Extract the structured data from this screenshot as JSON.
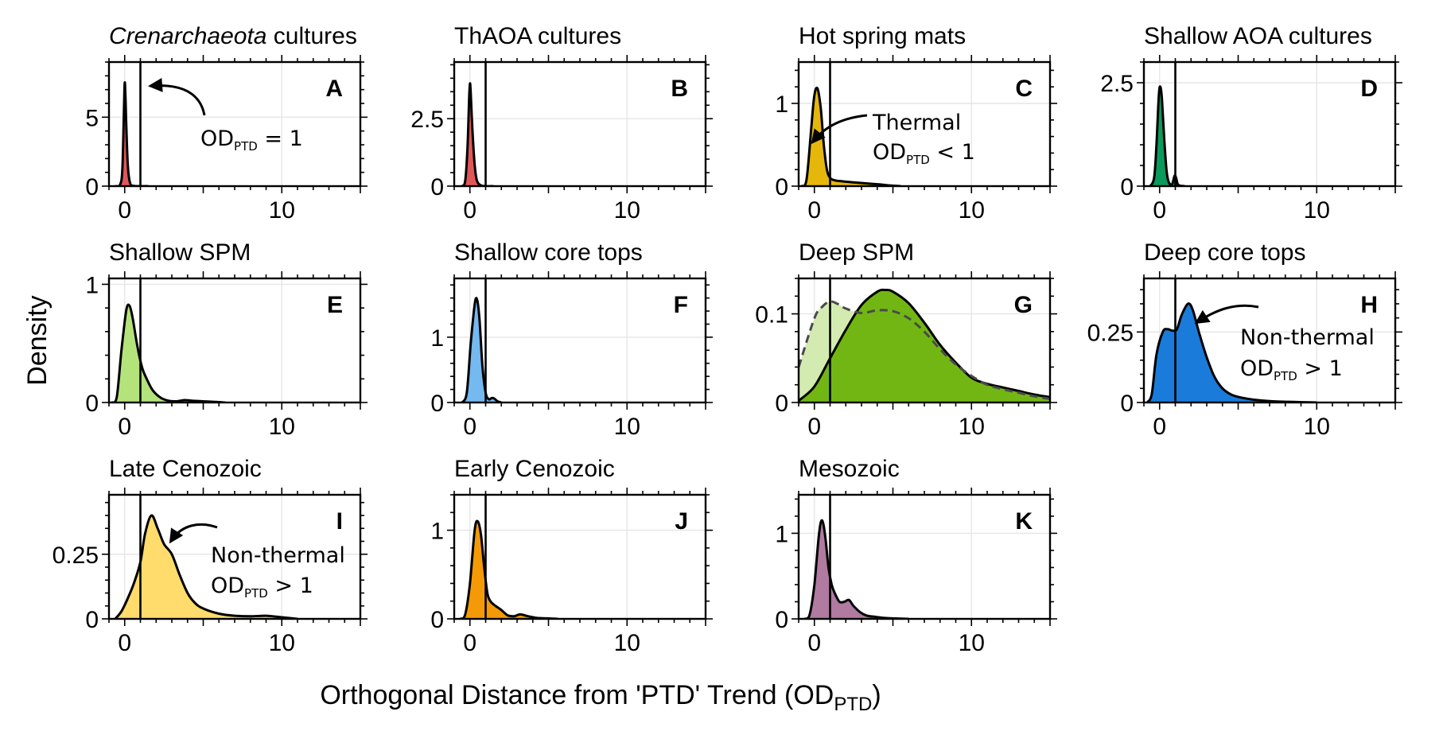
{
  "figure": {
    "xlabel": "Orthogonal Distance from 'PTD' Trend (OD",
    "xlabel_sub": "PTD",
    "xlabel_end": ")",
    "ylabel": "Density"
  },
  "chart_data": [
    {
      "type": "area",
      "letter": "A",
      "title_italic": "Crenarchaeota",
      "title": " cultures",
      "color": "#e15759",
      "xlim": [
        -1,
        15
      ],
      "ylim": [
        0,
        9
      ],
      "yticks": [
        0,
        5
      ],
      "yticks_labels": [
        "0",
        "5"
      ],
      "xticks": [
        0,
        10
      ],
      "vline": 1,
      "series": [
        {
          "x": [
            -0.6,
            -0.3,
            -0.15,
            -0.05,
            0.0,
            0.05,
            0.1,
            0.2,
            0.35,
            0.6,
            1.0,
            1.5
          ],
          "y": [
            0,
            0.1,
            1.2,
            5.5,
            7.5,
            6.5,
            4.5,
            1.5,
            0.2,
            0.02,
            0,
            0
          ]
        }
      ],
      "annotation": {
        "lines": [
          "OD_PTD = 1"
        ],
        "arrow": "A"
      }
    },
    {
      "type": "area",
      "letter": "B",
      "title": "ThAOA cultures",
      "color": "#e15759",
      "xlim": [
        -1,
        15
      ],
      "ylim": [
        0,
        4.6
      ],
      "yticks": [
        0,
        2.5
      ],
      "yticks_labels": [
        "0",
        "2.5"
      ],
      "xticks": [
        0,
        10
      ],
      "vline": 1,
      "series": [
        {
          "x": [
            -0.5,
            -0.3,
            -0.15,
            -0.05,
            0.0,
            0.05,
            0.15,
            0.3,
            0.45,
            0.7,
            1.0,
            1.5
          ],
          "y": [
            0,
            0.2,
            1.5,
            3.3,
            3.8,
            3.5,
            2.2,
            0.8,
            0.2,
            0.03,
            0,
            0
          ]
        }
      ]
    },
    {
      "type": "area",
      "letter": "C",
      "title": "Hot spring mats",
      "color": "#e5b70b",
      "xlim": [
        -1,
        15
      ],
      "ylim": [
        0,
        1.5
      ],
      "yticks": [
        0,
        1
      ],
      "yticks_labels": [
        "0",
        "1"
      ],
      "xticks": [
        0,
        10
      ],
      "vline": 1,
      "series": [
        {
          "x": [
            -0.8,
            -0.5,
            -0.2,
            0.0,
            0.2,
            0.4,
            0.6,
            0.8,
            1.0,
            1.3,
            1.7,
            2.2,
            2.8,
            3.5,
            4.2,
            4.7,
            5.5
          ],
          "y": [
            0,
            0.08,
            0.7,
            1.1,
            1.18,
            0.95,
            0.5,
            0.2,
            0.1,
            0.07,
            0.06,
            0.05,
            0.04,
            0.03,
            0.02,
            0.01,
            0
          ]
        }
      ],
      "annotation": {
        "lines": [
          "Thermal",
          "OD_PTD < 1"
        ],
        "arrow": "C"
      }
    },
    {
      "type": "area",
      "letter": "D",
      "title": "Shallow AOA cultures",
      "color": "#0a9a5c",
      "xlim": [
        -1,
        15
      ],
      "ylim": [
        0,
        3
      ],
      "yticks": [
        0,
        2.5
      ],
      "yticks_labels": [
        "0",
        "2.5"
      ],
      "xticks": [
        0,
        10
      ],
      "vline": 1,
      "series": [
        {
          "x": [
            -0.6,
            -0.35,
            -0.2,
            -0.05,
            0.05,
            0.15,
            0.3,
            0.45,
            0.6,
            0.8,
            0.95,
            1.05,
            1.15,
            1.3,
            1.6
          ],
          "y": [
            0,
            0.2,
            1.0,
            2.2,
            2.4,
            2.1,
            1.1,
            0.35,
            0.08,
            0.05,
            0.25,
            0.2,
            0.05,
            0.01,
            0
          ]
        }
      ]
    },
    {
      "type": "area",
      "letter": "E",
      "title": "Shallow SPM",
      "color": "#b5e37b",
      "xlim": [
        -1,
        15
      ],
      "ylim": [
        0,
        1.05
      ],
      "yticks": [
        0,
        1
      ],
      "yticks_labels": [
        "0",
        "1"
      ],
      "xticks": [
        0,
        10
      ],
      "vline": 1,
      "series": [
        {
          "x": [
            -0.8,
            -0.5,
            -0.2,
            0.1,
            0.3,
            0.5,
            0.8,
            1.1,
            1.4,
            1.8,
            2.3,
            2.8,
            3.3,
            3.8,
            4.3,
            5.0,
            5.8,
            6.4
          ],
          "y": [
            0,
            0.05,
            0.45,
            0.78,
            0.82,
            0.72,
            0.48,
            0.3,
            0.2,
            0.1,
            0.04,
            0.015,
            0.01,
            0.02,
            0.015,
            0.01,
            0.005,
            0
          ]
        }
      ]
    },
    {
      "type": "area",
      "letter": "F",
      "title": "Shallow core tops",
      "color": "#74b9f0",
      "xlim": [
        -1,
        15
      ],
      "ylim": [
        0,
        1.9
      ],
      "yticks": [
        0,
        1
      ],
      "yticks_labels": [
        "0",
        "1"
      ],
      "xticks": [
        0,
        10
      ],
      "vline": 1,
      "series": [
        {
          "x": [
            -0.5,
            -0.2,
            0.05,
            0.3,
            0.45,
            0.6,
            0.8,
            1.0,
            1.2,
            1.4,
            1.55,
            1.75,
            2.0
          ],
          "y": [
            0,
            0.15,
            0.9,
            1.5,
            1.58,
            1.3,
            0.55,
            0.15,
            0.05,
            0.07,
            0.06,
            0.02,
            0
          ]
        }
      ]
    },
    {
      "type": "area",
      "letter": "G",
      "title": "Deep SPM",
      "color": "#72b614",
      "color2": "#d3ebb0",
      "xlim": [
        -1,
        15
      ],
      "ylim": [
        0,
        0.14
      ],
      "yticks": [
        0,
        0.1
      ],
      "yticks_labels": [
        "0",
        "0.1"
      ],
      "xticks": [
        0,
        10
      ],
      "vline": 1,
      "series": [
        {
          "x": [
            -1,
            0,
            1,
            2,
            3,
            4,
            4.5,
            5,
            6,
            7,
            8,
            9,
            10,
            11,
            12,
            13,
            14,
            15
          ],
          "y": [
            0.002,
            0.018,
            0.05,
            0.082,
            0.11,
            0.125,
            0.127,
            0.125,
            0.112,
            0.09,
            0.065,
            0.045,
            0.028,
            0.021,
            0.017,
            0.013,
            0.009,
            0.006
          ]
        },
        {
          "x": [
            -1,
            0,
            0.5,
            1,
            1.5,
            2,
            3,
            4,
            5,
            6,
            7,
            8,
            9,
            10,
            11,
            12,
            13,
            14,
            15
          ],
          "y": [
            0.04,
            0.095,
            0.108,
            0.114,
            0.111,
            0.106,
            0.101,
            0.104,
            0.103,
            0.095,
            0.08,
            0.06,
            0.043,
            0.03,
            0.02,
            0.015,
            0.011,
            0.007,
            0.004
          ],
          "dashed": true
        }
      ]
    },
    {
      "type": "area",
      "letter": "H",
      "title": "Deep core tops",
      "color": "#1a7bdb",
      "xlim": [
        -1,
        15
      ],
      "ylim": [
        0,
        0.44
      ],
      "yticks": [
        0,
        0.25
      ],
      "yticks_labels": [
        "0",
        "0.25"
      ],
      "xticks": [
        0,
        10
      ],
      "vline": 1,
      "series": [
        {
          "x": [
            -0.8,
            -0.5,
            -0.2,
            0.2,
            0.5,
            0.8,
            1.1,
            1.4,
            1.8,
            2.1,
            2.5,
            3.0,
            3.5,
            4.0,
            4.5,
            5.0,
            6.0,
            7.0,
            8.5,
            10.0
          ],
          "y": [
            0,
            0.03,
            0.17,
            0.25,
            0.26,
            0.255,
            0.26,
            0.31,
            0.35,
            0.33,
            0.25,
            0.16,
            0.09,
            0.05,
            0.03,
            0.02,
            0.01,
            0.005,
            0.002,
            0
          ]
        }
      ],
      "annotation": {
        "lines": [
          "Non-thermal",
          "OD_PTD > 1"
        ],
        "arrow": "H"
      }
    },
    {
      "type": "area",
      "letter": "I",
      "title": "Late Cenozoic",
      "color": "#ffdc6b",
      "xlim": [
        -1,
        15
      ],
      "ylim": [
        0,
        0.48
      ],
      "yticks": [
        0,
        0.25
      ],
      "yticks_labels": [
        "0",
        "0.25"
      ],
      "xticks": [
        0,
        10
      ],
      "vline": 1,
      "series": [
        {
          "x": [
            -0.6,
            -0.2,
            0.2,
            0.6,
            1.0,
            1.3,
            1.7,
            2.1,
            2.5,
            3.0,
            3.5,
            4.0,
            4.5,
            5.0,
            6.0,
            7.0,
            8.0,
            9.0,
            10.0,
            11.0
          ],
          "y": [
            0,
            0.03,
            0.08,
            0.14,
            0.22,
            0.33,
            0.4,
            0.35,
            0.29,
            0.25,
            0.17,
            0.1,
            0.06,
            0.04,
            0.02,
            0.012,
            0.01,
            0.012,
            0.006,
            0
          ]
        }
      ],
      "annotation": {
        "lines": [
          "Non-thermal",
          "OD_PTD > 1"
        ],
        "arrow": "I"
      }
    },
    {
      "type": "area",
      "letter": "J",
      "title": "Early Cenozoic",
      "color": "#f59a07",
      "xlim": [
        -1,
        15
      ],
      "ylim": [
        0,
        1.4
      ],
      "yticks": [
        0,
        1
      ],
      "yticks_labels": [
        "0",
        "1"
      ],
      "xticks": [
        0,
        10
      ],
      "vline": 1,
      "series": [
        {
          "x": [
            -0.6,
            -0.3,
            0.0,
            0.3,
            0.5,
            0.7,
            0.9,
            1.1,
            1.3,
            1.6,
            2.0,
            2.4,
            2.8,
            3.2,
            3.7,
            4.3,
            5.0,
            5.6
          ],
          "y": [
            0,
            0.05,
            0.4,
            1.0,
            1.1,
            0.95,
            0.6,
            0.3,
            0.2,
            0.15,
            0.1,
            0.04,
            0.03,
            0.05,
            0.03,
            0.01,
            0.005,
            0
          ]
        }
      ]
    },
    {
      "type": "area",
      "letter": "K",
      "title": "Mesozoic",
      "color": "#b07aa1",
      "xlim": [
        -1,
        15
      ],
      "ylim": [
        0,
        1.45
      ],
      "yticks": [
        0,
        1
      ],
      "yticks_labels": [
        "0",
        "1"
      ],
      "xticks": [
        0,
        10
      ],
      "vline": 1,
      "series": [
        {
          "x": [
            -0.6,
            -0.3,
            0.0,
            0.3,
            0.5,
            0.7,
            0.9,
            1.1,
            1.3,
            1.6,
            1.9,
            2.2,
            2.5,
            2.9,
            3.3,
            3.8,
            4.5,
            5.2,
            6.0
          ],
          "y": [
            0,
            0.05,
            0.4,
            1.0,
            1.15,
            0.95,
            0.6,
            0.4,
            0.3,
            0.2,
            0.2,
            0.22,
            0.15,
            0.08,
            0.04,
            0.025,
            0.01,
            0.005,
            0
          ]
        }
      ]
    }
  ]
}
